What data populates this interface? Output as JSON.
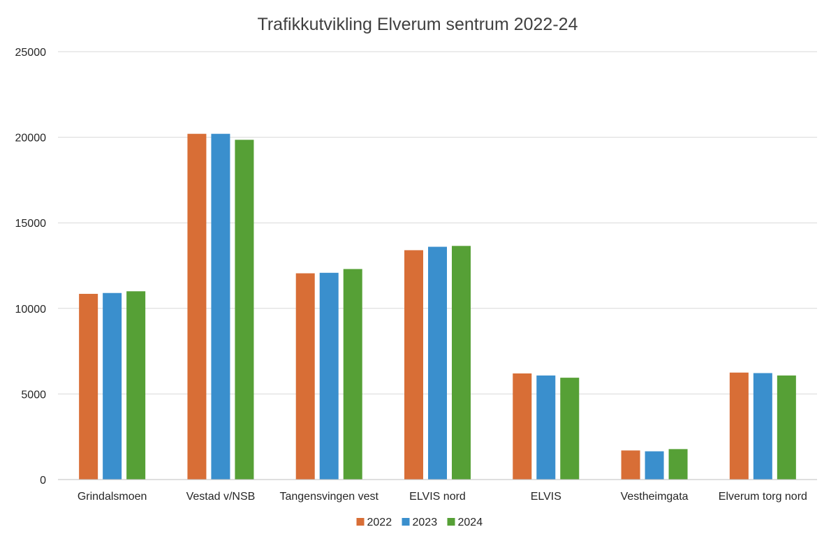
{
  "chart_data": {
    "type": "bar",
    "title": "Trafikkutvikling Elverum sentrum 2022-24",
    "xlabel": "",
    "ylabel": "",
    "categories": [
      "Grindalsmoen",
      "Vestad v/NSB",
      "Tangensvingen vest",
      "ELVIS nord",
      "ELVIS",
      "Vestheimgata",
      "Elverum torg nord"
    ],
    "series": [
      {
        "name": "2022",
        "color": "#D86E36",
        "values": [
          10850,
          20200,
          12050,
          13400,
          6200,
          1700,
          6250
        ]
      },
      {
        "name": "2023",
        "color": "#3A8FCD",
        "values": [
          10900,
          20200,
          12080,
          13600,
          6080,
          1650,
          6220
        ]
      },
      {
        "name": "2024",
        "color": "#56A036",
        "values": [
          11000,
          19850,
          12300,
          13650,
          5950,
          1780,
          6080
        ]
      }
    ],
    "ylim": [
      0,
      25000
    ],
    "yticks": [
      0,
      5000,
      10000,
      15000,
      20000,
      25000
    ],
    "grid": true,
    "legend_position": "bottom"
  }
}
